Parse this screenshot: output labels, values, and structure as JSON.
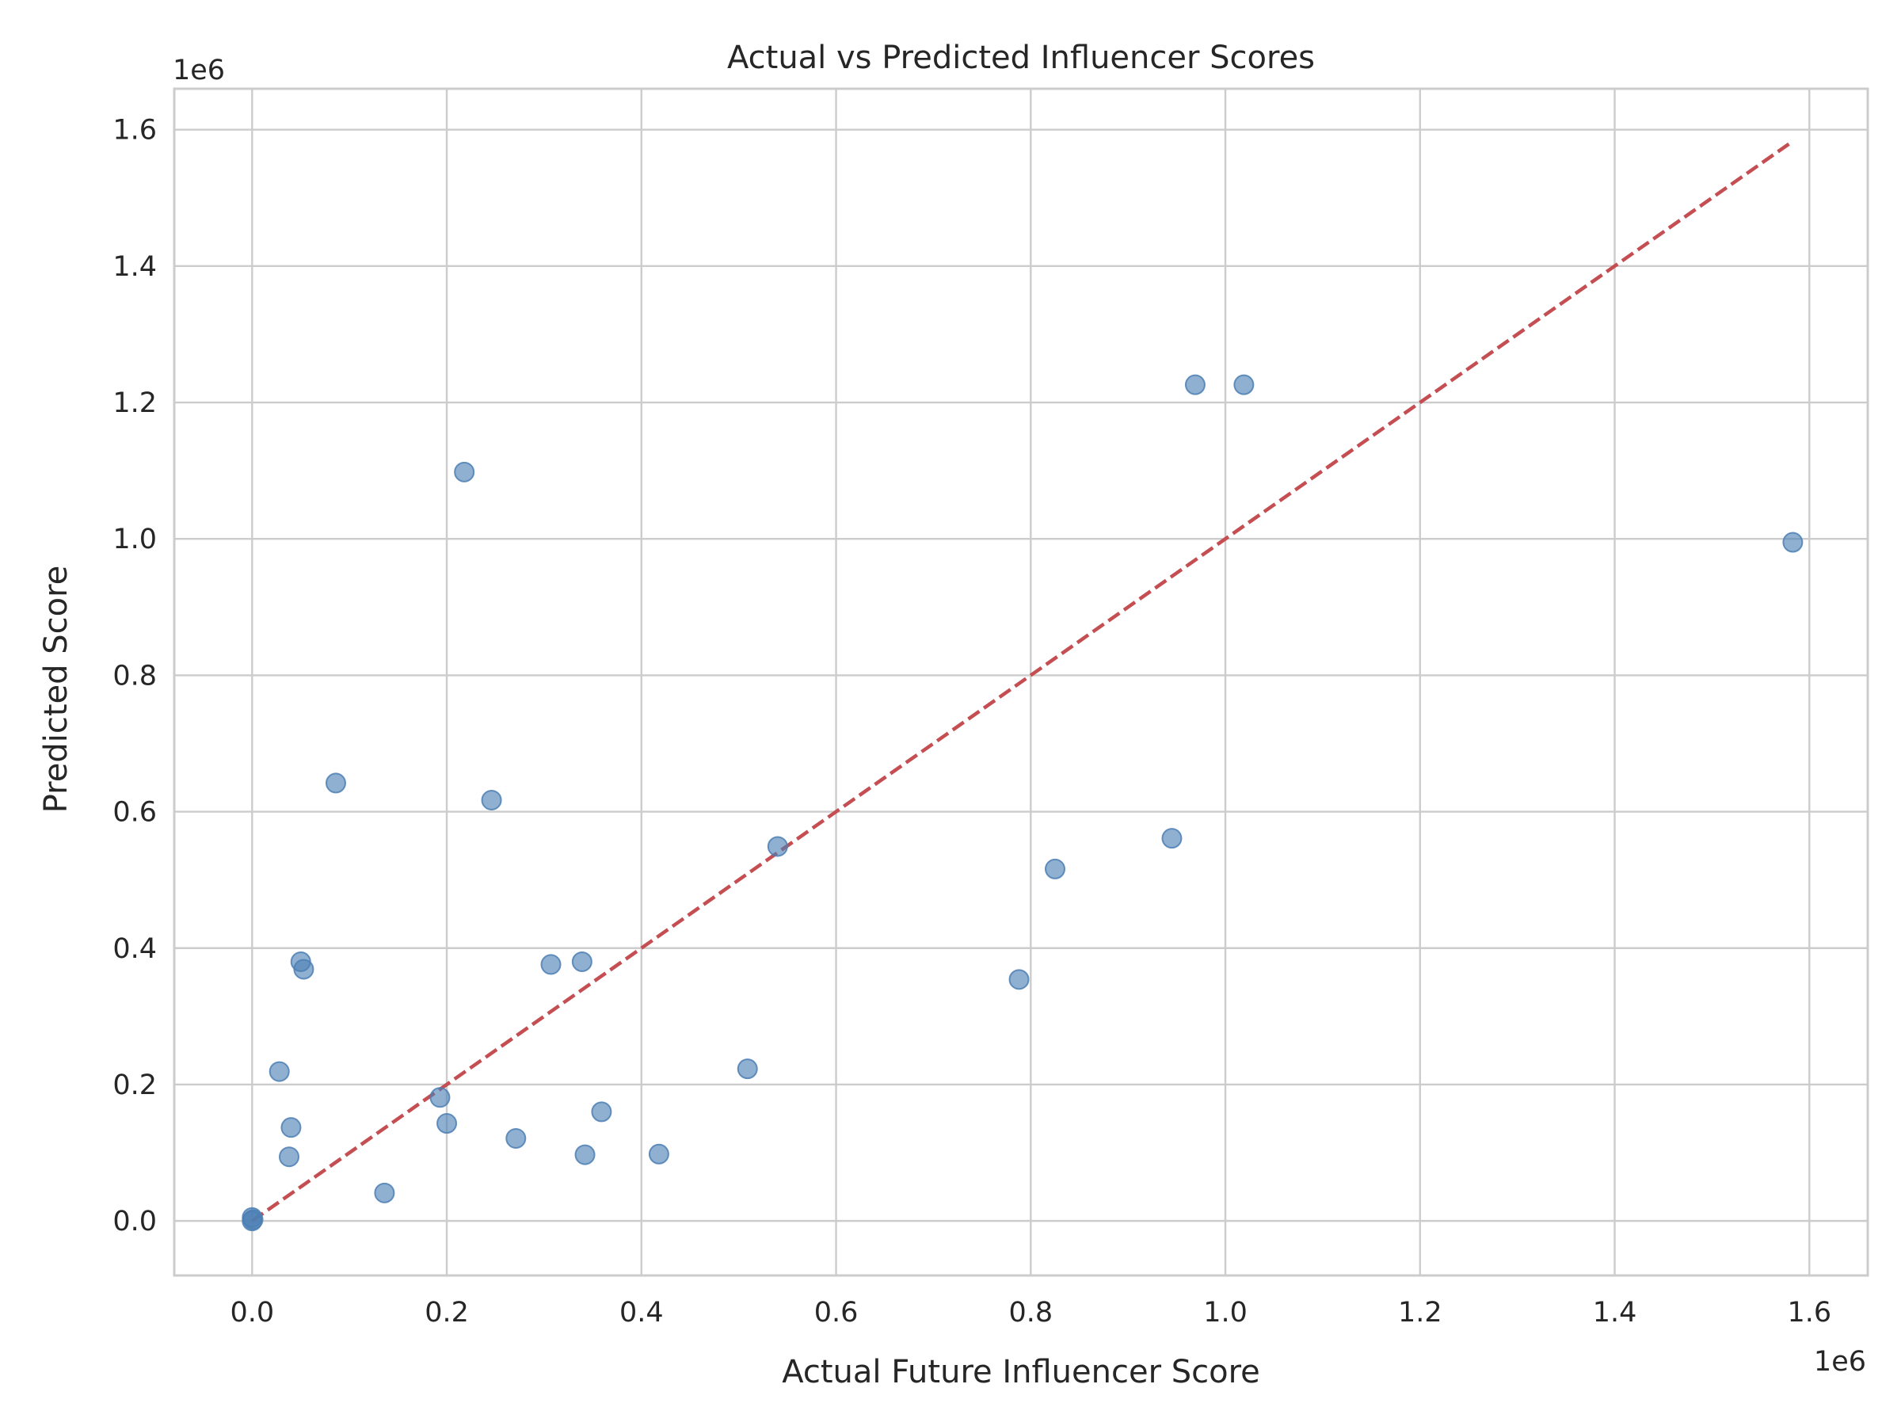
{
  "chart_data": {
    "type": "scatter",
    "title": "Actual vs Predicted Influencer Scores",
    "xlabel": "Actual Future Influencer Score",
    "ylabel": "Predicted Score",
    "x_offset_label": "1e6",
    "y_offset_label": "1e6",
    "xlim": [
      -0.08,
      1.66
    ],
    "ylim": [
      -0.08,
      1.66
    ],
    "x_ticks": [
      0.0,
      0.2,
      0.4,
      0.6,
      0.8,
      1.0,
      1.2,
      1.4,
      1.6
    ],
    "x_tick_labels": [
      "0.0",
      "0.2",
      "0.4",
      "0.6",
      "0.8",
      "1.0",
      "1.2",
      "1.4",
      "1.6"
    ],
    "y_ticks": [
      0.0,
      0.2,
      0.4,
      0.6,
      0.8,
      1.0,
      1.2,
      1.4,
      1.6
    ],
    "y_tick_labels": [
      "0.0",
      "0.2",
      "0.4",
      "0.6",
      "0.8",
      "1.0",
      "1.2",
      "1.4",
      "1.6"
    ],
    "grid": true,
    "series": [
      {
        "color": "#4c7fb4",
        "points": [
          [
            0.0,
            0.005
          ],
          [
            0.0,
            0.0
          ],
          [
            0.001,
            0.002
          ],
          [
            0.028,
            0.219
          ],
          [
            0.04,
            0.137
          ],
          [
            0.038,
            0.094
          ],
          [
            0.05,
            0.38
          ],
          [
            0.053,
            0.369
          ],
          [
            0.086,
            0.642
          ],
          [
            0.136,
            0.041
          ],
          [
            0.193,
            0.181
          ],
          [
            0.2,
            0.143
          ],
          [
            0.218,
            1.098
          ],
          [
            0.246,
            0.617
          ],
          [
            0.271,
            0.121
          ],
          [
            0.307,
            0.376
          ],
          [
            0.339,
            0.38
          ],
          [
            0.342,
            0.097
          ],
          [
            0.359,
            0.16
          ],
          [
            0.418,
            0.098
          ],
          [
            0.509,
            0.223
          ],
          [
            0.54,
            0.549
          ],
          [
            0.788,
            0.354
          ],
          [
            0.825,
            0.516
          ],
          [
            0.945,
            0.561
          ],
          [
            0.969,
            1.226
          ],
          [
            1.019,
            1.226
          ],
          [
            1.583,
            0.995
          ]
        ]
      }
    ],
    "reference_line": {
      "from": [
        0.0,
        0.0
      ],
      "to": [
        1.583,
        1.583
      ],
      "color": "#c44e52",
      "style": "dashed"
    }
  }
}
